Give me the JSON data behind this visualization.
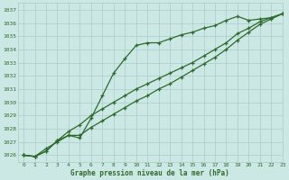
{
  "title": "Graphe pression niveau de la mer (hPa)",
  "bg_color": "#cce8e4",
  "grid_color": "#aaccc8",
  "line_color": "#2d6a2d",
  "marker_color": "#2d6a2d",
  "xlim": [
    -0.5,
    23
  ],
  "ylim": [
    1025.5,
    1037.5
  ],
  "yticks": [
    1026,
    1027,
    1028,
    1029,
    1030,
    1031,
    1032,
    1033,
    1034,
    1035,
    1036,
    1037
  ],
  "xticks": [
    0,
    1,
    2,
    3,
    4,
    5,
    6,
    7,
    8,
    9,
    10,
    11,
    12,
    13,
    14,
    15,
    16,
    17,
    18,
    19,
    20,
    21,
    22,
    23
  ],
  "series1_x": [
    0,
    1,
    2,
    3,
    4,
    5,
    6,
    7,
    8,
    9,
    10,
    11,
    12,
    13,
    14,
    15,
    16,
    17,
    18,
    19,
    20,
    21,
    22,
    23
  ],
  "series1_y": [
    1026.0,
    1025.9,
    1026.3,
    1027.1,
    1027.5,
    1027.3,
    1028.8,
    1030.5,
    1032.2,
    1033.3,
    1034.3,
    1034.5,
    1034.5,
    1034.8,
    1035.1,
    1035.3,
    1035.6,
    1035.8,
    1036.2,
    1036.5,
    1036.2,
    1036.3,
    1036.4,
    1036.7
  ],
  "series2_x": [
    0,
    1,
    2,
    3,
    4,
    5,
    6,
    7,
    8,
    9,
    10,
    11,
    12,
    13,
    14,
    15,
    16,
    17,
    18,
    19,
    20,
    21,
    22,
    23
  ],
  "series2_y": [
    1026.0,
    1025.9,
    1026.3,
    1027.1,
    1027.8,
    1028.3,
    1029.0,
    1029.5,
    1030.0,
    1030.5,
    1031.0,
    1031.4,
    1031.8,
    1032.2,
    1032.6,
    1033.0,
    1033.5,
    1034.0,
    1034.5,
    1035.2,
    1035.6,
    1036.1,
    1036.4,
    1036.7
  ],
  "series3_x": [
    0,
    1,
    2,
    3,
    4,
    5,
    6,
    7,
    8,
    9,
    10,
    11,
    12,
    13,
    14,
    15,
    16,
    17,
    18,
    19,
    20,
    21,
    22,
    23
  ],
  "series3_y": [
    1026.0,
    1025.9,
    1026.5,
    1027.0,
    1027.5,
    1027.5,
    1028.1,
    1028.6,
    1029.1,
    1029.6,
    1030.1,
    1030.5,
    1031.0,
    1031.4,
    1031.9,
    1032.4,
    1032.9,
    1033.4,
    1034.0,
    1034.7,
    1035.3,
    1035.9,
    1036.3,
    1036.7
  ]
}
